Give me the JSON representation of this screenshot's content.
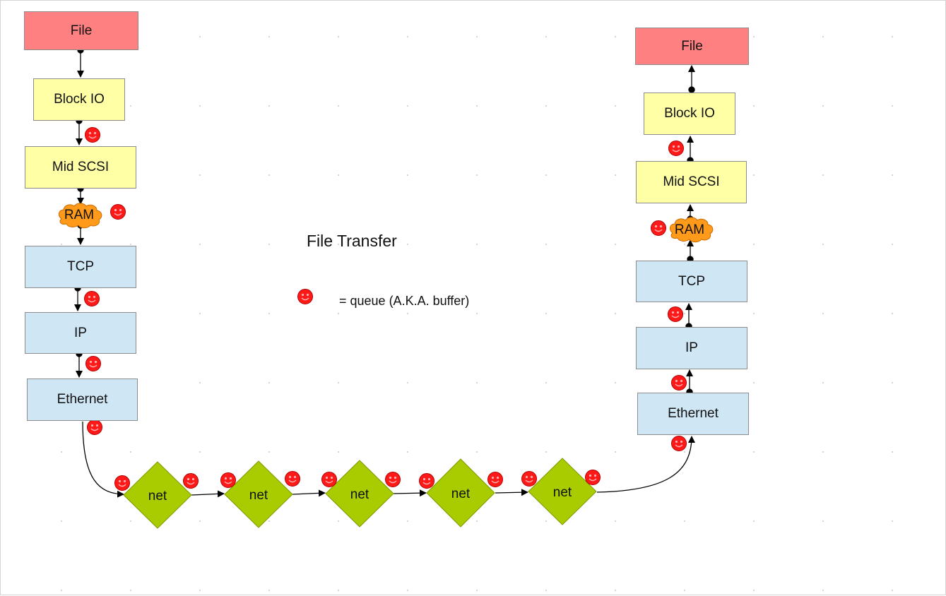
{
  "diagram": {
    "title": "File Transfer",
    "legend_text": "= queue (A.K.A. buffer)",
    "left_stack": {
      "file": "File",
      "block_io": "Block IO",
      "mid_scsi": "Mid SCSI",
      "ram": "RAM",
      "tcp": "TCP",
      "ip": "IP",
      "ethernet": "Ethernet"
    },
    "right_stack": {
      "file": "File",
      "block_io": "Block IO",
      "mid_scsi": "Mid SCSI",
      "ram": "RAM",
      "tcp": "TCP",
      "ip": "IP",
      "ethernet": "Ethernet"
    },
    "net_nodes": [
      "net",
      "net",
      "net",
      "net",
      "net"
    ],
    "colors": {
      "file": "#ff8080",
      "scsi_layers": "#ffffa6",
      "network_layers": "#cfe6f5",
      "ram_cloud": "#ff9a1a",
      "net_diamond": "#a8cc00",
      "queue_icon": "#ff1a1a"
    },
    "icons": {
      "queue": "smiley-face-icon",
      "ram": "cloud-icon"
    }
  }
}
